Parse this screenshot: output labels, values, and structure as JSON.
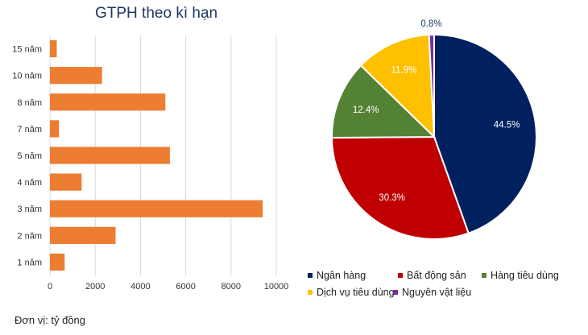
{
  "chart_data": [
    {
      "type": "bar",
      "orientation": "horizontal",
      "title": "GTPH theo kì hạn",
      "categories": [
        "15 năm",
        "10 năm",
        "8 năm",
        "7 năm",
        "5 năm",
        "4 năm",
        "3 năm",
        "2 năm",
        "1 năm"
      ],
      "values": [
        300,
        2300,
        5100,
        400,
        5300,
        1400,
        9400,
        2900,
        650
      ],
      "xlim": [
        0,
        10000
      ],
      "xticks": [
        "0",
        "2000",
        "4000",
        "6000",
        "8000",
        "10000"
      ],
      "xtick_values": [
        0,
        2000,
        4000,
        6000,
        8000,
        10000
      ],
      "grid": true,
      "color": "#ED7D31"
    },
    {
      "type": "pie",
      "slices": [
        {
          "name": "Ngân hàng",
          "value": 44.5,
          "label": "44.5%",
          "color": "#002060",
          "label_color": "#ffffff"
        },
        {
          "name": "Bất động sản",
          "value": 30.3,
          "label": "30.3%",
          "color": "#C00000",
          "label_color": "#ffffff"
        },
        {
          "name": "Hàng tiêu dùng",
          "value": 12.4,
          "label": "12.4%",
          "color": "#548235",
          "label_color": "#ffffff"
        },
        {
          "name": "Dịch vụ tiêu dùng",
          "value": 11.9,
          "label": "11.9%",
          "color": "#FFC000",
          "label_color": "#ffffff"
        },
        {
          "name": "Nguyên vật liệu",
          "value": 0.8,
          "label": "0.8%",
          "color": "#7030A0",
          "label_color": "#1f3864"
        }
      ],
      "legend_position": "bottom"
    }
  ],
  "note": "Đơn vị: tỷ đồng"
}
